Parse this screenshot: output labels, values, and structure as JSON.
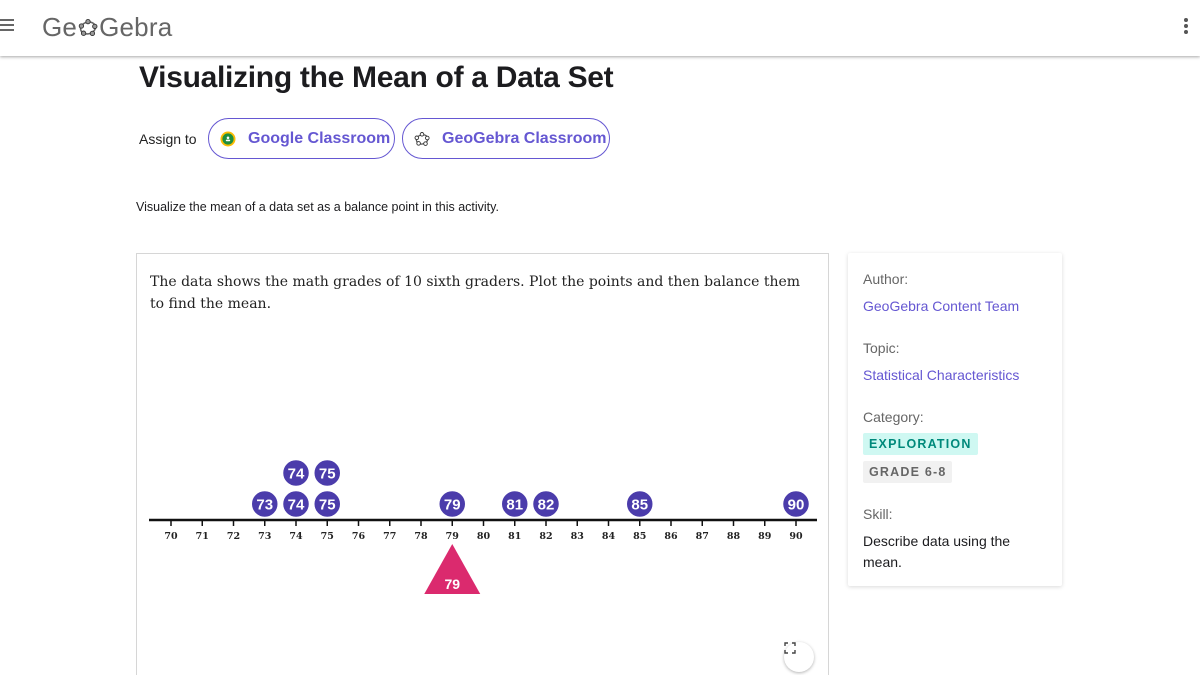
{
  "header": {
    "logo_text_pre": "Ge",
    "logo_text_post": "Gebra",
    "menu_icon": "hamburger-icon",
    "more_icon": "kebab-menu-icon"
  },
  "page": {
    "title": "Visualizing the Mean of a Data Set",
    "assign_label": "Assign to",
    "google_classroom_label": "Google Classroom",
    "geogebra_classroom_label": "GeoGebra Classroom",
    "description": "Visualize the mean of a data set as a balance point in this activity."
  },
  "applet": {
    "instructions": "The data shows the math grades of 10 sixth graders. Plot the points and then balance them to find the mean.",
    "number_line": {
      "min": 70,
      "max": 90,
      "ticks": [
        70,
        71,
        72,
        73,
        74,
        75,
        76,
        77,
        78,
        79,
        80,
        81,
        82,
        83,
        84,
        85,
        86,
        87,
        88,
        89,
        90
      ]
    },
    "points": [
      {
        "value": 73,
        "stack": 0
      },
      {
        "value": 74,
        "stack": 0
      },
      {
        "value": 74,
        "stack": 1
      },
      {
        "value": 75,
        "stack": 0
      },
      {
        "value": 75,
        "stack": 1
      },
      {
        "value": 79,
        "stack": 0
      },
      {
        "value": 81,
        "stack": 0
      },
      {
        "value": 82,
        "stack": 0
      },
      {
        "value": 85,
        "stack": 0
      },
      {
        "value": 90,
        "stack": 0
      }
    ],
    "balance_point": {
      "value": 79,
      "label": "79"
    },
    "colors": {
      "point": "#4b3cab",
      "fulcrum": "#db2a6e",
      "axis": "#111111"
    },
    "fullscreen_icon": "fullscreen-icon"
  },
  "sidebar": {
    "author_label": "Author:",
    "author_value": "GeoGebra Content Team",
    "topic_label": "Topic:",
    "topic_value": "Statistical Characteristics",
    "category_label": "Category:",
    "category_tags": [
      "EXPLORATION",
      "GRADE 6-8"
    ],
    "skill_label": "Skill:",
    "skill_value": "Describe data using the mean."
  }
}
